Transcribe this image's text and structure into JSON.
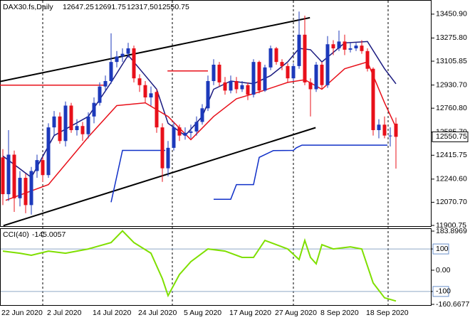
{
  "chart_data": [
    {
      "type": "candlestick",
      "title": "DAX30.fs,Daily",
      "ohlc_labels": [
        "12647.25",
        "12691.75",
        "12317,50",
        "12550.75"
      ],
      "categories": [
        "22 Jun 2020",
        null,
        null,
        null,
        null,
        null,
        null,
        null,
        "2 Jul 2020",
        null,
        null,
        null,
        null,
        null,
        null,
        null,
        "14 Jul 2020",
        null,
        null,
        null,
        null,
        null,
        null,
        null,
        "24 Jul 2020",
        null,
        null,
        null,
        null,
        null,
        null,
        null,
        "5 Aug 2020",
        null,
        null,
        null,
        null,
        null,
        null,
        null,
        "17 Aug 2020",
        null,
        null,
        null,
        null,
        null,
        null,
        null,
        "27 Aug 2020",
        null,
        null,
        null,
        null,
        null,
        null,
        null,
        "8 Sep 2020",
        null,
        null,
        null,
        null,
        null,
        null,
        null,
        "18 Sep 2020",
        null,
        null,
        null,
        null,
        null
      ],
      "open": [
        12400,
        12130,
        12420,
        12100,
        12250,
        12050,
        12300,
        12380,
        12270,
        12620,
        12700,
        12520,
        12780,
        12600,
        12630,
        12570,
        12700,
        12800,
        12920,
        12960,
        13100,
        13140,
        13160,
        13200,
        12980,
        12930,
        12840,
        12880,
        12620,
        12320,
        12470,
        12620,
        12560,
        12580,
        12590,
        12660,
        12760,
        12960,
        13080,
        12950,
        12890,
        12960,
        12900,
        12930,
        12860,
        13100,
        12890,
        13060,
        13200,
        13100,
        13070,
        12980,
        13070,
        13300,
        12950,
        12900,
        13080,
        12930,
        13230,
        13200,
        13250,
        13190,
        13200,
        13220,
        13180,
        13050,
        12600,
        12640,
        12560,
        12647.25
      ],
      "high": [
        12460,
        12600,
        12450,
        12300,
        12280,
        12330,
        12420,
        12400,
        12650,
        12740,
        12730,
        12810,
        12800,
        12680,
        12660,
        12730,
        12840,
        12950,
        13000,
        13310,
        13180,
        13200,
        13240,
        13220,
        13010,
        12960,
        12920,
        12900,
        12650,
        12520,
        12660,
        12640,
        12620,
        12640,
        12700,
        12790,
        13000,
        13120,
        13100,
        12990,
        13000,
        12990,
        12960,
        12950,
        13120,
        13110,
        13080,
        13220,
        13210,
        13120,
        13090,
        13090,
        13470,
        13440,
        12980,
        13100,
        13100,
        13290,
        13260,
        13330,
        13300,
        13240,
        13240,
        13260,
        13200,
        13060,
        12680,
        12700,
        12620,
        12691.75
      ],
      "low": [
        12050,
        12080,
        12000,
        12040,
        11990,
        11980,
        12250,
        12220,
        12250,
        12560,
        12500,
        12480,
        12580,
        12560,
        12520,
        12540,
        12650,
        12780,
        12880,
        12940,
        13060,
        13100,
        13130,
        12950,
        12880,
        12800,
        12780,
        12580,
        12220,
        12260,
        12450,
        12520,
        12530,
        12540,
        12560,
        12640,
        12740,
        12930,
        12920,
        12860,
        12870,
        12870,
        12880,
        12820,
        12840,
        12870,
        12880,
        13040,
        13080,
        13040,
        12950,
        12960,
        13050,
        12930,
        12700,
        12880,
        12900,
        12910,
        13150,
        13180,
        13150,
        13170,
        13180,
        13160,
        13030,
        12560,
        12540,
        12540,
        12480,
        12317.5
      ],
      "close": [
        12130,
        12420,
        12100,
        12250,
        12050,
        12300,
        12380,
        12270,
        12620,
        12700,
        12520,
        12780,
        12600,
        12630,
        12570,
        12700,
        12800,
        12920,
        12960,
        13100,
        13140,
        13160,
        13200,
        12980,
        12930,
        12840,
        12870,
        12620,
        12320,
        12470,
        12620,
        12560,
        12580,
        12590,
        12660,
        12760,
        12960,
        13080,
        12950,
        12890,
        12960,
        12900,
        12930,
        12860,
        13100,
        12890,
        13060,
        13200,
        13100,
        13070,
        12980,
        13070,
        13300,
        12950,
        12900,
        13080,
        12930,
        13230,
        13200,
        13250,
        13190,
        13200,
        13220,
        13180,
        13050,
        12600,
        12640,
        12560,
        12560,
        12550.75
      ],
      "up_color": "#1c39bb",
      "down_color": "#e8101a",
      "lines": [
        {
          "color": "#000000",
          "x": [
            -0.5,
            53.9
          ],
          "values": [
            12956,
            13425
          ]
        },
        {
          "color": "#000000",
          "x": [
            0.1,
            54.9
          ],
          "values": [
            11899,
            12618
          ]
        },
        {
          "color": "#e8101a",
          "x": [
            -0.5,
            18
          ],
          "values": [
            12930,
            12930
          ]
        },
        {
          "color": "#e8101a",
          "x": [
            28.9,
            36
          ],
          "values": [
            13034,
            13034
          ]
        },
        {
          "color": "#1030c8",
          "x": [
            19,
            21,
            28.5,
            29,
            37,
            40,
            41,
            44,
            45,
            47.5,
            51,
            51.5,
            52.5,
            67.5
          ],
          "values": [
            12071,
            12451,
            12451,
            null,
            12093,
            12093,
            12200,
            12200,
            12400,
            12450,
            12451,
            12470,
            12490,
            12490
          ]
        },
        {
          "color": "#1a1a80",
          "x": [
            0,
            5,
            9,
            15,
            19,
            22,
            25,
            27,
            29,
            32,
            35,
            37,
            40,
            44,
            47,
            50,
            52,
            54,
            56,
            60,
            64,
            67,
            69
          ],
          "values": [
            12410,
            12253,
            12560,
            12700,
            12950,
            13150,
            13000,
            12900,
            12650,
            12560,
            12700,
            12900,
            12960,
            12940,
            13000,
            13100,
            13200,
            13190,
            13100,
            13240,
            13250,
            13050,
            12940
          ]
        },
        {
          "color": "#e8101a",
          "x": [
            0.5,
            8,
            15,
            20,
            25,
            29,
            33,
            37,
            41,
            45,
            50,
            53,
            56,
            60,
            64,
            67,
            69
          ],
          "values": [
            12085,
            12200,
            12550,
            12780,
            12800,
            12700,
            12530,
            12700,
            12830,
            12880,
            12950,
            12970,
            12900,
            13050,
            13100,
            12800,
            12620
          ]
        }
      ],
      "ylim": [
        11900.75,
        13539
      ],
      "yticks": [
        {
          "value": 13450.9,
          "label": "13450.90"
        },
        {
          "value": 13275.8,
          "label": "13275.80"
        },
        13105.85,
        {
          "value": 12930.7,
          "label": "12930.70"
        },
        {
          "value": 12760.8,
          "label": "12760.80"
        },
        {
          "value": 12585.7,
          "label": "12585.70"
        },
        12415.75,
        {
          "value": 12240.6,
          "label": "12240.60"
        },
        {
          "value": 12070.7,
          "label": "12070.70"
        },
        11900.75
      ]
    },
    {
      "type": "line",
      "title": "CCI(40)",
      "color": "#7fdf00",
      "x": [
        0,
        3,
        5,
        8,
        11,
        15,
        19,
        21,
        23,
        26,
        28,
        29,
        31,
        33,
        36,
        39,
        42,
        44,
        46,
        48,
        50,
        52,
        53,
        54,
        55,
        56,
        58,
        61,
        63,
        65,
        67,
        69
      ],
      "values": [
        90,
        80,
        70,
        90,
        80,
        100,
        130,
        185,
        130,
        80,
        -40,
        -120,
        -20,
        40,
        100,
        90,
        60,
        60,
        140,
        120,
        100,
        50,
        140,
        60,
        30,
        120,
        100,
        110,
        100,
        -60,
        -130,
        -145.0057
      ],
      "ylim": [
        -160.6677,
        183.8969
      ],
      "yticks": [
        183.8969,
        100,
        {
          "value": 0,
          "label": "0.00"
        },
        -100,
        -160.6677
      ],
      "levels": [
        100,
        -100
      ]
    }
  ]
}
